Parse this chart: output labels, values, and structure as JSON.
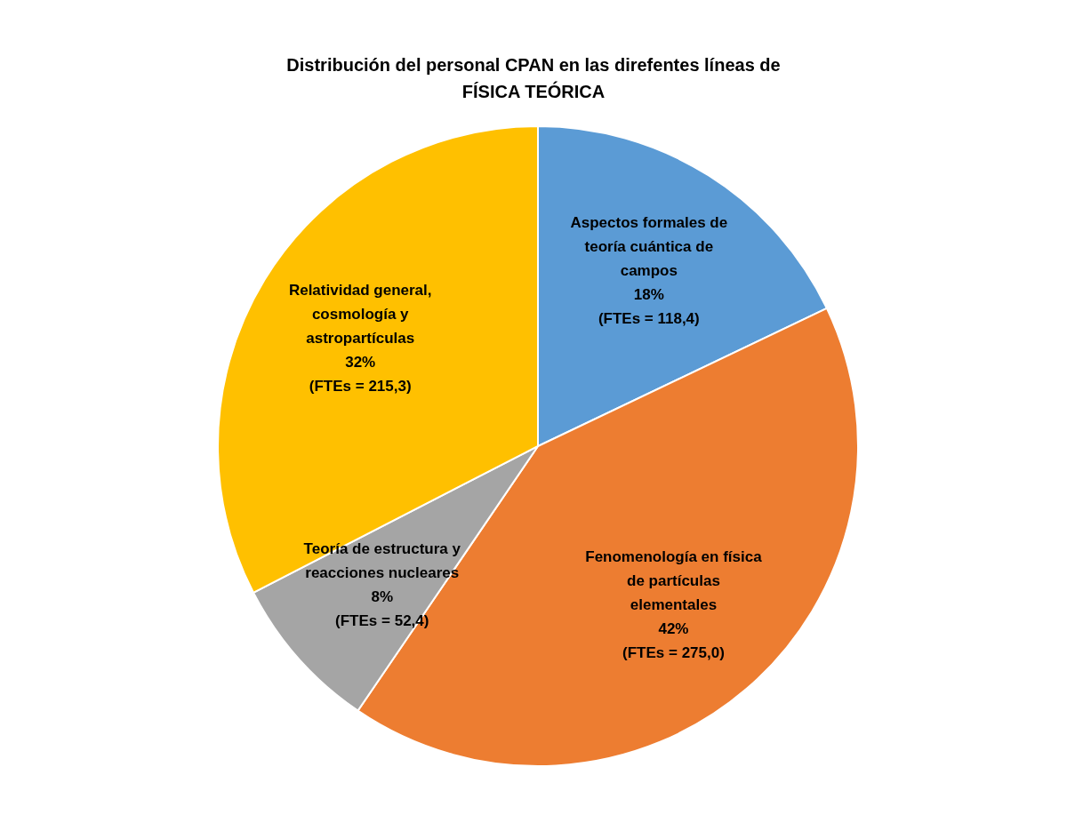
{
  "chart_data": {
    "type": "pie",
    "title": "Distribución del personal CPAN en las direfentes líneas de FÍSICA TEÓRICA",
    "categories": [
      "Aspectos formales de teoría cuántica de campos",
      "Fenomenología en física de partículas elementales",
      "Teoría de estructura y reacciones nucleares",
      "Relatividad general, cosmología y astropartículas"
    ],
    "values": [
      118.4,
      275.0,
      52.4,
      215.3
    ],
    "colors": [
      "#5b9bd5",
      "#ed7d31",
      "#a5a5a5",
      "#ffc000"
    ],
    "value_labels": [
      "18%\n(FTEs = 118,4)",
      "42%\n(FTEs = 275,0)",
      "8%\n(FTEs = 52,4)",
      "32%\n(FTEs = 215,3)"
    ]
  }
}
